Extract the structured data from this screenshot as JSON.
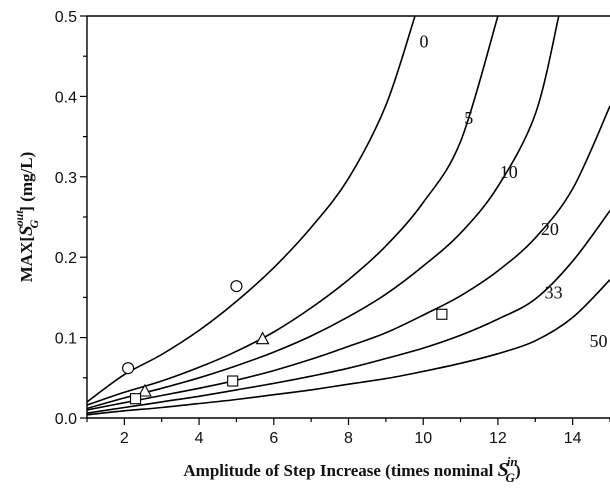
{
  "chart_data": {
    "type": "line",
    "title": "",
    "xlabel": {
      "text": "Amplitude of Step Increase (times nominal ",
      "symbol": "S",
      "sub": "G",
      "sup": "in",
      "close": ")"
    },
    "ylabel": {
      "prefix": "MAX[",
      "symbol": "S",
      "sub": "G",
      "sup": "out",
      "suffix": "] (mg/L)"
    },
    "xlim": [
      1,
      15
    ],
    "ylim": [
      0,
      0.5
    ],
    "x_ticks": [
      2,
      4,
      6,
      8,
      10,
      12,
      14
    ],
    "x_tick_labels": [
      "2",
      "4",
      "6",
      "8",
      "10",
      "12",
      "14"
    ],
    "y_ticks": [
      0.0,
      0.1,
      0.2,
      0.3,
      0.4,
      0.5
    ],
    "y_tick_labels": [
      "0.0",
      "0.1",
      "0.2",
      "0.3",
      "0.4",
      "0.5"
    ],
    "series": [
      {
        "name": "0",
        "x": [
          1,
          2,
          3,
          4,
          5,
          6,
          7,
          8,
          9,
          9.78
        ],
        "y": [
          0.02,
          0.054,
          0.079,
          0.109,
          0.145,
          0.187,
          0.237,
          0.298,
          0.389,
          0.5
        ]
      },
      {
        "name": "5",
        "x": [
          1,
          2,
          3,
          4,
          5,
          6,
          7,
          8,
          9,
          10,
          11,
          12
        ],
        "y": [
          0.016,
          0.032,
          0.046,
          0.063,
          0.083,
          0.107,
          0.137,
          0.172,
          0.214,
          0.268,
          0.344,
          0.5
        ]
      },
      {
        "name": "10",
        "x": [
          1,
          2,
          3,
          4,
          5,
          6,
          7,
          8,
          9,
          10,
          11,
          12,
          13,
          13.63
        ],
        "y": [
          0.012,
          0.025,
          0.037,
          0.05,
          0.065,
          0.082,
          0.102,
          0.126,
          0.154,
          0.189,
          0.23,
          0.288,
          0.378,
          0.5
        ]
      },
      {
        "name": "20",
        "x": [
          1,
          2,
          3,
          4,
          5,
          6,
          7,
          8,
          9,
          10,
          11,
          12,
          13,
          14,
          15
        ],
        "y": [
          0.01,
          0.019,
          0.028,
          0.037,
          0.047,
          0.059,
          0.073,
          0.089,
          0.106,
          0.128,
          0.152,
          0.183,
          0.224,
          0.285,
          0.388
        ]
      },
      {
        "name": "33",
        "x": [
          1,
          2,
          3,
          4,
          5,
          6,
          7,
          8,
          9,
          10,
          11,
          12,
          13,
          14,
          15
        ],
        "y": [
          0.006,
          0.013,
          0.02,
          0.027,
          0.035,
          0.043,
          0.052,
          0.062,
          0.074,
          0.087,
          0.103,
          0.123,
          0.148,
          0.195,
          0.258
        ]
      },
      {
        "name": "50",
        "x": [
          1,
          2,
          3,
          4,
          5,
          6,
          7,
          8,
          9,
          10,
          11,
          12,
          13,
          14,
          15
        ],
        "y": [
          0.004,
          0.009,
          0.013,
          0.018,
          0.023,
          0.029,
          0.035,
          0.042,
          0.049,
          0.058,
          0.068,
          0.08,
          0.096,
          0.125,
          0.172
        ]
      }
    ],
    "curve_labels": [
      {
        "text": "0",
        "x": 9.9,
        "y": 0.468
      },
      {
        "text": "5",
        "x": 11.1,
        "y": 0.373
      },
      {
        "text": "10",
        "x": 12.05,
        "y": 0.306
      },
      {
        "text": "20",
        "x": 13.15,
        "y": 0.235
      },
      {
        "text": "33",
        "x": 13.25,
        "y": 0.156
      },
      {
        "text": "50",
        "x": 14.45,
        "y": 0.096
      }
    ],
    "markers": [
      {
        "shape": "circle",
        "x": 2.1,
        "y": 0.062
      },
      {
        "shape": "circle",
        "x": 5.0,
        "y": 0.164
      },
      {
        "shape": "triangle",
        "x": 2.55,
        "y": 0.033
      },
      {
        "shape": "triangle",
        "x": 5.7,
        "y": 0.098
      },
      {
        "shape": "square",
        "x": 2.3,
        "y": 0.024
      },
      {
        "shape": "square",
        "x": 4.9,
        "y": 0.046
      },
      {
        "shape": "square",
        "x": 10.5,
        "y": 0.129
      }
    ],
    "grid": false,
    "legend": "none"
  }
}
